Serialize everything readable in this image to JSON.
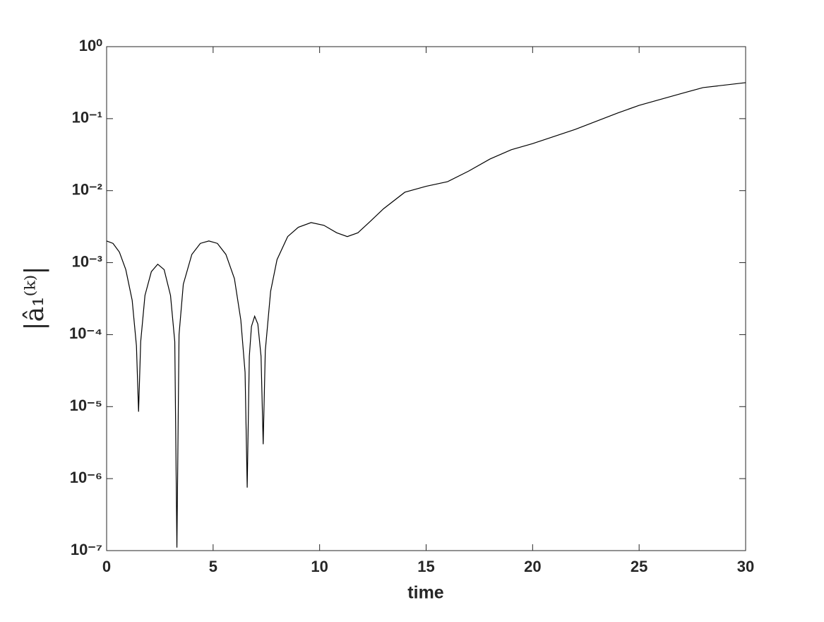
{
  "chart_data": {
    "type": "line",
    "x_label": "time",
    "y_label": "|â₁⁽ᵏ⁾|",
    "x": [
      0,
      0.3,
      0.6,
      0.9,
      1.2,
      1.4,
      1.5,
      1.6,
      1.8,
      2.1,
      2.4,
      2.7,
      3.0,
      3.2,
      3.3,
      3.4,
      3.6,
      4.0,
      4.4,
      4.8,
      5.2,
      5.6,
      6.0,
      6.3,
      6.5,
      6.6,
      6.7,
      6.8,
      6.95,
      7.1,
      7.25,
      7.35,
      7.45,
      7.7,
      8.0,
      8.5,
      9.0,
      9.6,
      10.2,
      10.8,
      11.3,
      11.8,
      12.4,
      13,
      14,
      15,
      16,
      17,
      18,
      19,
      20,
      22,
      24,
      25,
      27,
      28,
      30
    ],
    "values": [
      0.002,
      0.00185,
      0.0014,
      0.0008,
      0.0003,
      7e-05,
      8.5e-06,
      8e-05,
      0.00035,
      0.00075,
      0.00095,
      0.0008,
      0.00035,
      8e-05,
      1.1e-07,
      0.0001,
      0.0005,
      0.0013,
      0.00185,
      0.002,
      0.00185,
      0.0013,
      0.0006,
      0.00016,
      3e-05,
      7.5e-07,
      5e-05,
      0.00013,
      0.00018,
      0.00014,
      5e-05,
      3e-06,
      6e-05,
      0.0004,
      0.0011,
      0.0023,
      0.0031,
      0.0036,
      0.0033,
      0.0026,
      0.0023,
      0.0026,
      0.0038,
      0.0056,
      0.0095,
      0.0115,
      0.0133,
      0.0187,
      0.0275,
      0.037,
      0.045,
      0.071,
      0.12,
      0.153,
      0.224,
      0.27,
      0.316
    ],
    "color": "#000000",
    "xlim": [
      0,
      30
    ],
    "xticks": [
      0,
      5,
      10,
      15,
      20,
      25,
      30
    ],
    "ylim": [
      1e-07,
      1
    ],
    "y_log": true,
    "yticks": [
      {
        "value": 1e-07,
        "label": "10⁻⁷"
      },
      {
        "value": 1e-06,
        "label": "10⁻⁶"
      },
      {
        "value": 1e-05,
        "label": "10⁻⁵"
      },
      {
        "value": 0.0001,
        "label": "10⁻⁴"
      },
      {
        "value": 0.001,
        "label": "10⁻³"
      },
      {
        "value": 0.01,
        "label": "10⁻²"
      },
      {
        "value": 0.1,
        "label": "10⁻¹"
      },
      {
        "value": 1,
        "label": "10⁰"
      }
    ],
    "grid": false
  }
}
